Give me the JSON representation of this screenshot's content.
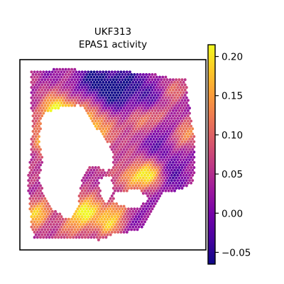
{
  "chart_data": {
    "type": "heatmap",
    "title_line1": "UKF313",
    "title_line2": "EPAS1 activity",
    "xlabel": "",
    "ylabel": "",
    "colormap": "plasma",
    "colormap_stops": [
      "#0d0887",
      "#46039f",
      "#7201a8",
      "#9c179e",
      "#bd3786",
      "#d8576b",
      "#ed7953",
      "#fb9f3a",
      "#fdca26",
      "#f0f921"
    ],
    "color_range": [
      -0.065,
      0.215
    ],
    "colorbar_ticks": [
      {
        "value": 0.2,
        "label": "0.20"
      },
      {
        "value": 0.15,
        "label": "0.15"
      },
      {
        "value": 0.1,
        "label": "0.10"
      },
      {
        "value": 0.05,
        "label": "0.05"
      },
      {
        "value": 0.0,
        "label": "0.00"
      },
      {
        "value": -0.05,
        "label": "−0.05"
      }
    ],
    "grid": false,
    "legend": "colorbar-right"
  }
}
